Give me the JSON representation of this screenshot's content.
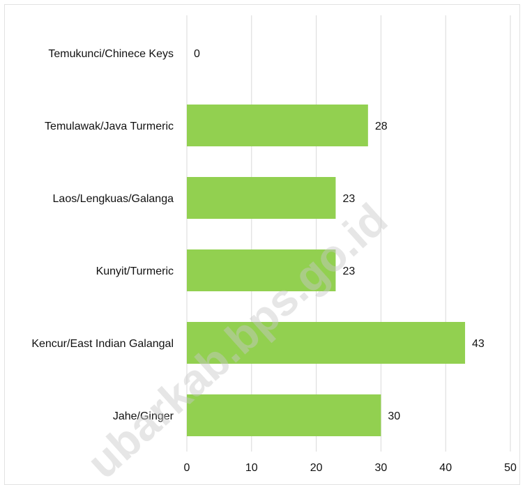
{
  "chart_data": {
    "type": "bar",
    "orientation": "horizontal",
    "categories": [
      "Temukunci/Chinece Keys",
      "Temulawak/Java Turmeric",
      "Laos/Lengkuas/Galanga",
      "Kunyit/Turmeric",
      "Kencur/East Indian Galangal",
      "Jahe/Ginger"
    ],
    "values": [
      0,
      28,
      23,
      23,
      43,
      30
    ],
    "xlim": [
      0,
      50
    ],
    "xticks": [
      0,
      10,
      20,
      30,
      40,
      50
    ],
    "title": "",
    "xlabel": "",
    "ylabel": "",
    "grid": "vertical",
    "bar_color": "#92d050",
    "gridline_color": "#d9d9d9",
    "watermark": "ubarkab.bps.go.id"
  }
}
